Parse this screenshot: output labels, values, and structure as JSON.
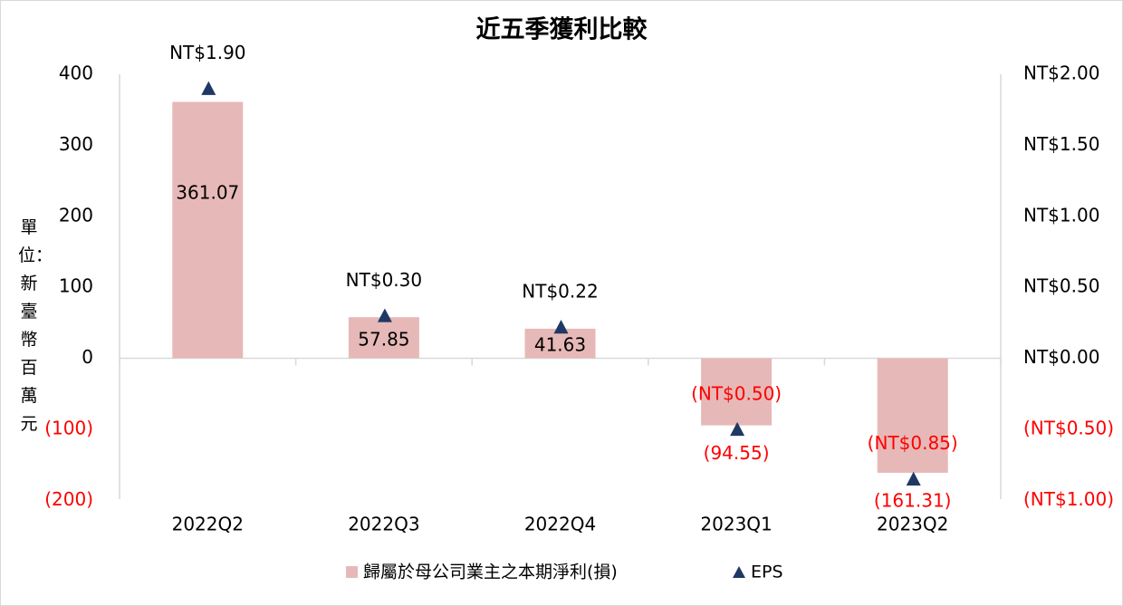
{
  "chart_data": {
    "type": "bar",
    "title": "近五季獲利比較",
    "ylabel": "單位：新臺幣百萬元",
    "categories": [
      "2022Q2",
      "2022Q3",
      "2022Q4",
      "2023Q1",
      "2023Q2"
    ],
    "series": [
      {
        "name": "歸屬於母公司業主之本期淨利(損)",
        "type": "bar",
        "axis": "left",
        "values": [
          361.07,
          57.85,
          41.63,
          -94.55,
          -161.31
        ],
        "labels": [
          "361.07",
          "57.85",
          "41.63",
          "(94.55)",
          "(161.31)"
        ],
        "color": "#e6b9b8"
      },
      {
        "name": "EPS",
        "type": "scatter",
        "marker": "triangle",
        "axis": "right",
        "values": [
          1.9,
          0.3,
          0.22,
          -0.5,
          -0.85
        ],
        "labels": [
          "NT$1.90",
          "NT$0.30",
          "NT$0.22",
          "(NT$0.50)",
          "(NT$0.85)"
        ],
        "color": "#1f3864"
      }
    ],
    "y_left": {
      "range": [
        -200,
        400
      ],
      "ticks": [
        400,
        300,
        200,
        100,
        0,
        -100,
        -200
      ],
      "tick_labels": [
        "400",
        "300",
        "200",
        "100",
        "0",
        "(100)",
        "(200)"
      ]
    },
    "y_right": {
      "range": [
        -1.0,
        2.0
      ],
      "ticks": [
        2.0,
        1.5,
        1.0,
        0.5,
        0.0,
        -0.5,
        -1.0
      ],
      "tick_labels": [
        "NT$2.00",
        "NT$1.50",
        "NT$1.00",
        "NT$0.50",
        "NT$0.00",
        "(NT$0.50)",
        "(NT$1.00)"
      ]
    },
    "legend": {
      "placement": "bottom"
    },
    "grid": false,
    "colors": {
      "negative_text": "#ff0000",
      "text": "#000000",
      "axis": "#d9d9d9"
    }
  }
}
